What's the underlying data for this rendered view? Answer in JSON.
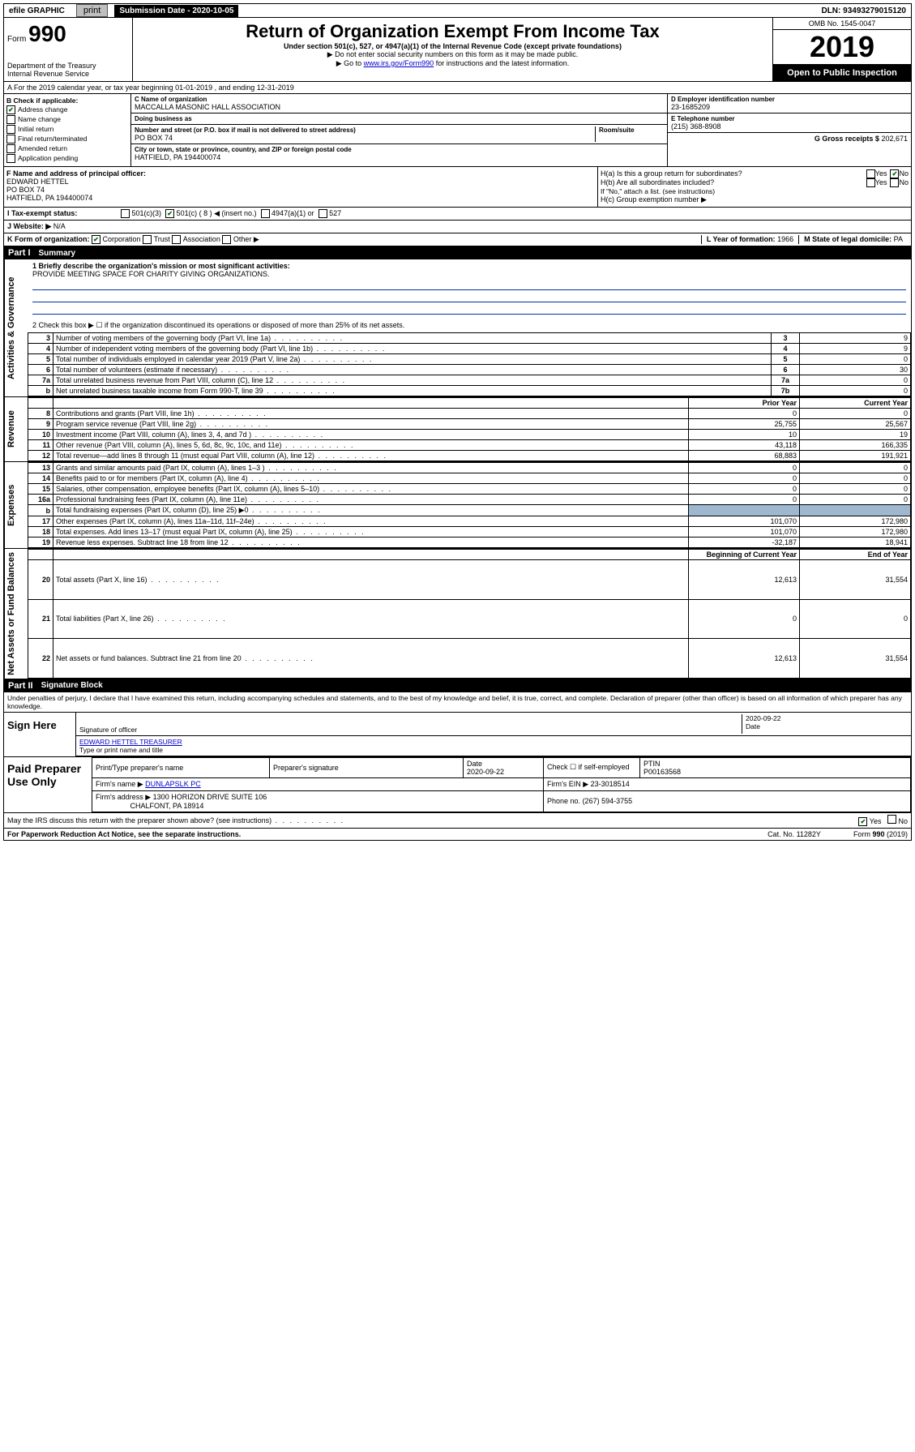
{
  "topbar": {
    "efile": "efile GRAPHIC",
    "print": "print",
    "submission": "Submission Date - 2020-10-05",
    "dln": "DLN: 93493279015120"
  },
  "header": {
    "form_prefix": "Form",
    "form_num": "990",
    "dept": "Department of the Treasury\nInternal Revenue Service",
    "title": "Return of Organization Exempt From Income Tax",
    "subtitle": "Under section 501(c), 527, or 4947(a)(1) of the Internal Revenue Code (except private foundations)",
    "note1": "▶ Do not enter social security numbers on this form as it may be made public.",
    "note2_pre": "▶ Go to ",
    "note2_link": "www.irs.gov/Form990",
    "note2_post": " for instructions and the latest information.",
    "omb": "OMB No. 1545-0047",
    "year": "2019",
    "inspection": "Open to Public Inspection"
  },
  "line_a": "A   For the 2019 calendar year, or tax year beginning 01-01-2019   , and ending 12-31-2019",
  "check_b": {
    "label": "B Check if applicable:",
    "items": [
      {
        "label": "Address change",
        "checked": true
      },
      {
        "label": "Name change",
        "checked": false
      },
      {
        "label": "Initial return",
        "checked": false
      },
      {
        "label": "Final return/terminated",
        "checked": false
      },
      {
        "label": "Amended return",
        "checked": false
      },
      {
        "label": "Application pending",
        "checked": false
      }
    ]
  },
  "block_c": {
    "name_lbl": "C Name of organization",
    "name": "MACCALLA MASONIC HALL ASSOCIATION",
    "dba_lbl": "Doing business as",
    "dba": "",
    "addr_lbl": "Number and street (or P.O. box if mail is not delivered to street address)",
    "room_lbl": "Room/suite",
    "addr": "PO BOX 74",
    "city_lbl": "City or town, state or province, country, and ZIP or foreign postal code",
    "city": "HATFIELD, PA  194400074"
  },
  "block_d": {
    "ein_lbl": "D Employer identification number",
    "ein": "23-1685209",
    "tel_lbl": "E Telephone number",
    "tel": "(215) 368-8908",
    "gross_lbl": "G Gross receipts $",
    "gross": "202,671"
  },
  "block_f": {
    "lbl": "F  Name and address of principal officer:",
    "name": "EDWARD HETTEL",
    "addr1": "PO BOX 74",
    "addr2": "HATFIELD, PA  194400074"
  },
  "block_h": {
    "ha": "H(a)  Is this a group return for subordinates?",
    "hb": "H(b)  Are all subordinates included?",
    "hb_note": "If \"No,\" attach a list. (see instructions)",
    "hc": "H(c)  Group exemption number ▶",
    "ha_yes": "Yes",
    "ha_no": "No",
    "hb_yes": "Yes",
    "hb_no": "No"
  },
  "line_i": {
    "lbl": "I     Tax-exempt status:",
    "o1": "501(c)(3)",
    "o2": "501(c) ( 8 ) ◀ (insert no.)",
    "o3": "4947(a)(1) or",
    "o4": "527"
  },
  "line_j": {
    "lbl": "J    Website: ▶",
    "val": "N/A"
  },
  "line_k": {
    "lbl": "K Form of organization:",
    "o1": "Corporation",
    "o2": "Trust",
    "o3": "Association",
    "o4": "Other ▶",
    "l_lbl": "L Year of formation:",
    "l_val": "1966",
    "m_lbl": "M State of legal domicile:",
    "m_val": "PA"
  },
  "part1": {
    "title": "Part I",
    "name": "Summary",
    "q1_lbl": "1  Briefly describe the organization's mission or most significant activities:",
    "q1_val": "PROVIDE MEETING SPACE FOR CHARITY GIVING ORGANIZATIONS.",
    "q2": "2   Check this box ▶ ☐  if the organization discontinued its operations or disposed of more than 25% of its net assets.",
    "rows_top": [
      {
        "n": "3",
        "t": "Number of voting members of the governing body (Part VI, line 1a)",
        "c": "3",
        "v": "9"
      },
      {
        "n": "4",
        "t": "Number of independent voting members of the governing body (Part VI, line 1b)",
        "c": "4",
        "v": "9"
      },
      {
        "n": "5",
        "t": "Total number of individuals employed in calendar year 2019 (Part V, line 2a)",
        "c": "5",
        "v": "0"
      },
      {
        "n": "6",
        "t": "Total number of volunteers (estimate if necessary)",
        "c": "6",
        "v": "30"
      },
      {
        "n": "7a",
        "t": "Total unrelated business revenue from Part VIII, column (C), line 12",
        "c": "7a",
        "v": "0"
      },
      {
        "n": "b",
        "t": "Net unrelated business taxable income from Form 990-T, line 39",
        "c": "7b",
        "v": "0"
      }
    ],
    "col_prior": "Prior Year",
    "col_curr": "Current Year",
    "strips": {
      "act": "Activities & Governance",
      "rev": "Revenue",
      "exp": "Expenses",
      "net": "Net Assets or Fund Balances"
    },
    "revenue": [
      {
        "n": "8",
        "t": "Contributions and grants (Part VIII, line 1h)",
        "p": "0",
        "c": "0"
      },
      {
        "n": "9",
        "t": "Program service revenue (Part VIII, line 2g)",
        "p": "25,755",
        "c": "25,567"
      },
      {
        "n": "10",
        "t": "Investment income (Part VIII, column (A), lines 3, 4, and 7d )",
        "p": "10",
        "c": "19"
      },
      {
        "n": "11",
        "t": "Other revenue (Part VIII, column (A), lines 5, 6d, 8c, 9c, 10c, and 11e)",
        "p": "43,118",
        "c": "166,335"
      },
      {
        "n": "12",
        "t": "Total revenue—add lines 8 through 11 (must equal Part VIII, column (A), line 12)",
        "p": "68,883",
        "c": "191,921"
      }
    ],
    "expenses": [
      {
        "n": "13",
        "t": "Grants and similar amounts paid (Part IX, column (A), lines 1–3 )",
        "p": "0",
        "c": "0"
      },
      {
        "n": "14",
        "t": "Benefits paid to or for members (Part IX, column (A), line 4)",
        "p": "0",
        "c": "0"
      },
      {
        "n": "15",
        "t": "Salaries, other compensation, employee benefits (Part IX, column (A), lines 5–10)",
        "p": "0",
        "c": "0"
      },
      {
        "n": "16a",
        "t": "Professional fundraising fees (Part IX, column (A), line 11e)",
        "p": "0",
        "c": "0"
      },
      {
        "n": "b",
        "t": "Total fundraising expenses (Part IX, column (D), line 25) ▶0",
        "p": "",
        "c": "",
        "shaded": true
      },
      {
        "n": "17",
        "t": "Other expenses (Part IX, column (A), lines 11a–11d, 11f–24e)",
        "p": "101,070",
        "c": "172,980"
      },
      {
        "n": "18",
        "t": "Total expenses. Add lines 13–17 (must equal Part IX, column (A), line 25)",
        "p": "101,070",
        "c": "172,980"
      },
      {
        "n": "19",
        "t": "Revenue less expenses. Subtract line 18 from line 12",
        "p": "-32,187",
        "c": "18,941"
      }
    ],
    "col_begin": "Beginning of Current Year",
    "col_end": "End of Year",
    "net": [
      {
        "n": "20",
        "t": "Total assets (Part X, line 16)",
        "p": "12,613",
        "c": "31,554"
      },
      {
        "n": "21",
        "t": "Total liabilities (Part X, line 26)",
        "p": "0",
        "c": "0"
      },
      {
        "n": "22",
        "t": "Net assets or fund balances. Subtract line 21 from line 20",
        "p": "12,613",
        "c": "31,554"
      }
    ]
  },
  "part2": {
    "title": "Part II",
    "name": "Signature Block",
    "decl": "Under penalties of perjury, I declare that I have examined this return, including accompanying schedules and statements, and to the best of my knowledge and belief, it is true, correct, and complete. Declaration of preparer (other than officer) is based on all information of which preparer has any knowledge."
  },
  "sign": {
    "here": "Sign Here",
    "sig_lbl": "Signature of officer",
    "date_lbl": "Date",
    "date": "2020-09-22",
    "name": "EDWARD HETTEL  TREASURER",
    "name_lbl": "Type or print name and title"
  },
  "paid": {
    "title": "Paid Preparer Use Only",
    "h1": "Print/Type preparer's name",
    "h2": "Preparer's signature",
    "h3": "Date",
    "h3v": "2020-09-22",
    "h4": "Check ☐ if self-employed",
    "h5": "PTIN",
    "h5v": "P00163568",
    "firm_lbl": "Firm's name    ▶",
    "firm": "DUNLAPSLK PC",
    "ein_lbl": "Firm's EIN ▶",
    "ein": "23-3018514",
    "addr_lbl": "Firm's address ▶",
    "addr1": "1300 HORIZON DRIVE SUITE 106",
    "addr2": "CHALFONT, PA  18914",
    "phone_lbl": "Phone no.",
    "phone": "(267) 594-3755"
  },
  "discuss": {
    "q": "May the IRS discuss this return with the preparer shown above? (see instructions)",
    "yes": "Yes",
    "no": "No"
  },
  "footer": {
    "left": "For Paperwork Reduction Act Notice, see the separate instructions.",
    "mid": "Cat. No. 11282Y",
    "right": "Form 990 (2019)"
  }
}
